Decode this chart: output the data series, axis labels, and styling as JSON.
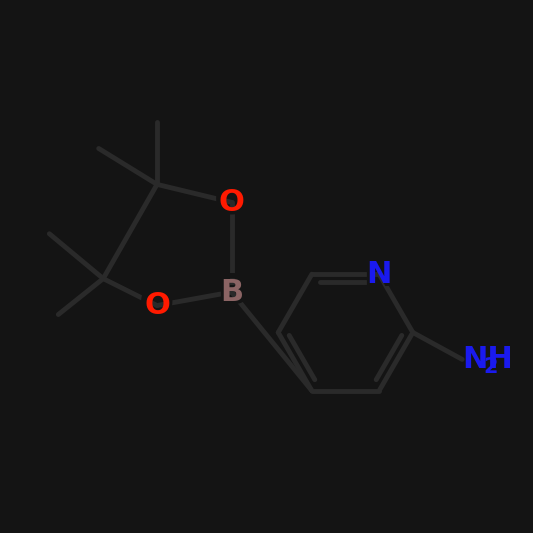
{
  "background_color": "#141414",
  "bond_color": "#2a2a2a",
  "bond_width": 3.5,
  "atom_colors": {
    "O": "#ff1a00",
    "B": "#8B6464",
    "N": "#1a1aee",
    "NH2": "#1a1aee",
    "C": "#000000"
  },
  "label_fontsize": 22,
  "subscript_fontsize": 15,
  "bg_label_fontsize": 28
}
